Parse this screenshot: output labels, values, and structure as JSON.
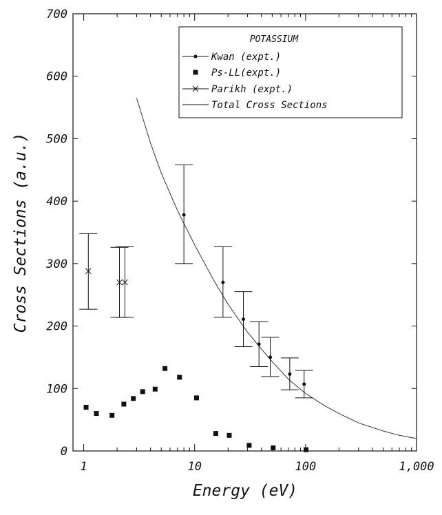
{
  "chart_data": {
    "type": "scatter",
    "title": "",
    "xlabel": "Energy (eV)",
    "ylabel": "Cross Sections (a.u.)",
    "xscale": "log",
    "xlim": [
      0.8,
      1000
    ],
    "ylim": [
      0,
      700
    ],
    "xticks": [
      1,
      10,
      100,
      1000
    ],
    "xtick_labels": [
      "1",
      "10",
      "100",
      "1,000"
    ],
    "yticks": [
      0,
      100,
      200,
      300,
      400,
      500,
      600,
      700
    ],
    "ytick_labels": [
      "0",
      "100",
      "200",
      "300",
      "400",
      "500",
      "600",
      "700"
    ],
    "grid": false,
    "legend": {
      "placement": "top-right",
      "title": "POTASSIUM",
      "entries": [
        "Kwan (expt.)",
        "Ps-LL(expt.)",
        "Parikh (expt.)",
        "Total Cross Sections"
      ]
    },
    "series": [
      {
        "name": "Kwan (expt.)",
        "marker": "dot",
        "points": [
          {
            "x": 8,
            "y": 378,
            "err_low": 300,
            "err_high": 458
          },
          {
            "x": 18,
            "y": 270,
            "err_low": 214,
            "err_high": 327
          },
          {
            "x": 27.5,
            "y": 211,
            "err_low": 167,
            "err_high": 255
          },
          {
            "x": 38,
            "y": 171,
            "err_low": 135,
            "err_high": 207
          },
          {
            "x": 48,
            "y": 150,
            "err_low": 119,
            "err_high": 182
          },
          {
            "x": 72,
            "y": 123,
            "err_low": 98,
            "err_high": 149
          },
          {
            "x": 97,
            "y": 107,
            "err_low": 85,
            "err_high": 129
          }
        ]
      },
      {
        "name": "Ps-LL(expt.)",
        "marker": "square",
        "points": [
          {
            "x": 1.05,
            "y": 70
          },
          {
            "x": 1.3,
            "y": 60
          },
          {
            "x": 1.8,
            "y": 57
          },
          {
            "x": 2.3,
            "y": 75
          },
          {
            "x": 2.8,
            "y": 84
          },
          {
            "x": 3.4,
            "y": 95
          },
          {
            "x": 4.4,
            "y": 99
          },
          {
            "x": 5.4,
            "y": 132
          },
          {
            "x": 7.3,
            "y": 118
          },
          {
            "x": 10.4,
            "y": 85
          },
          {
            "x": 15.5,
            "y": 28
          },
          {
            "x": 20.5,
            "y": 25
          },
          {
            "x": 31,
            "y": 9
          },
          {
            "x": 51,
            "y": 5
          },
          {
            "x": 101,
            "y": 2
          }
        ]
      },
      {
        "name": "Parikh (expt.)",
        "marker": "x",
        "points": [
          {
            "x": 1.1,
            "y": 288,
            "err_low": 227,
            "err_high": 348
          },
          {
            "x": 2.1,
            "y": 270,
            "err_low": 214,
            "err_high": 326
          },
          {
            "x": 2.35,
            "y": 270,
            "err_low": 214,
            "err_high": 327
          }
        ]
      },
      {
        "name": "Total Cross Sections",
        "marker": "line",
        "points": [
          {
            "x": 3,
            "y": 565
          },
          {
            "x": 4,
            "y": 493
          },
          {
            "x": 5,
            "y": 445
          },
          {
            "x": 7,
            "y": 385
          },
          {
            "x": 10,
            "y": 330
          },
          {
            "x": 15,
            "y": 272
          },
          {
            "x": 20,
            "y": 235
          },
          {
            "x": 30,
            "y": 190
          },
          {
            "x": 40,
            "y": 163
          },
          {
            "x": 50,
            "y": 143
          },
          {
            "x": 70,
            "y": 115
          },
          {
            "x": 100,
            "y": 92
          },
          {
            "x": 150,
            "y": 72
          },
          {
            "x": 200,
            "y": 60
          },
          {
            "x": 300,
            "y": 45
          },
          {
            "x": 500,
            "y": 32
          },
          {
            "x": 700,
            "y": 25
          },
          {
            "x": 1000,
            "y": 20
          }
        ]
      }
    ]
  }
}
